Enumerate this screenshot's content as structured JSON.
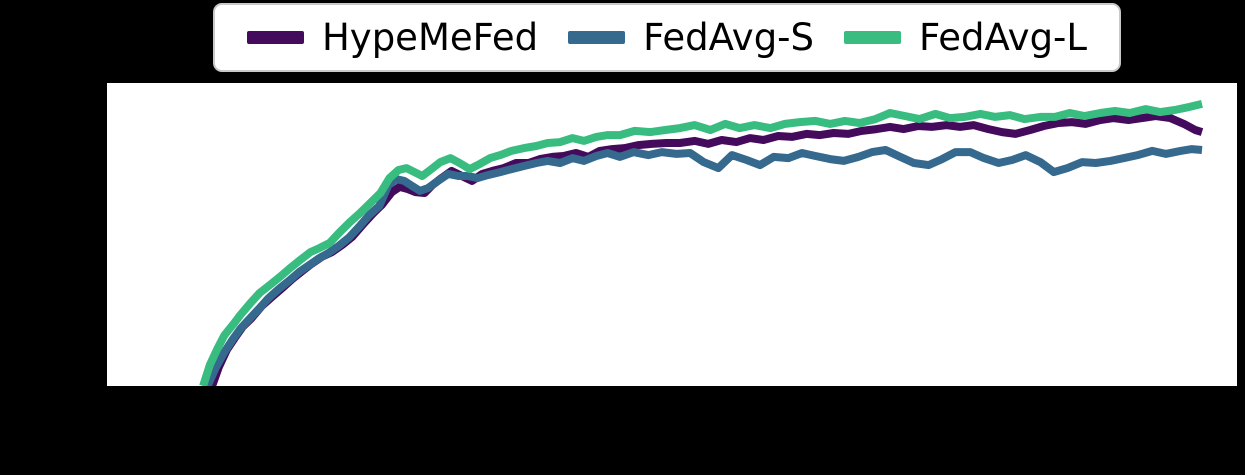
{
  "figure": {
    "background_color": "#000000",
    "plot_background_color": "#ffffff",
    "axis_tick_labels_visible": false,
    "title": ""
  },
  "legend": {
    "position": "top-center",
    "background_color": "#ffffff",
    "border_color": "#c9c9c9"
  },
  "chart_data": {
    "type": "line",
    "title": "",
    "xlabel": "",
    "ylabel": "",
    "grid": false,
    "legend_position": "top",
    "line_width": 8,
    "coords_note": "points are normalized to plot area: x 0-1 left to right, y 0-1 bottom to top (no axis tick labels are visible in the image)",
    "series": [
      {
        "name": "HypeMeFed",
        "color": "#440a5c",
        "points": [
          [
            0.093,
            0.0
          ],
          [
            0.099,
            0.063
          ],
          [
            0.106,
            0.119
          ],
          [
            0.113,
            0.158
          ],
          [
            0.12,
            0.195
          ],
          [
            0.128,
            0.224
          ],
          [
            0.137,
            0.264
          ],
          [
            0.146,
            0.294
          ],
          [
            0.155,
            0.323
          ],
          [
            0.164,
            0.353
          ],
          [
            0.173,
            0.38
          ],
          [
            0.181,
            0.403
          ],
          [
            0.19,
            0.426
          ],
          [
            0.199,
            0.442
          ],
          [
            0.208,
            0.465
          ],
          [
            0.217,
            0.492
          ],
          [
            0.226,
            0.531
          ],
          [
            0.235,
            0.568
          ],
          [
            0.243,
            0.597
          ],
          [
            0.252,
            0.64
          ],
          [
            0.259,
            0.657
          ],
          [
            0.266,
            0.65
          ],
          [
            0.273,
            0.64
          ],
          [
            0.281,
            0.637
          ],
          [
            0.288,
            0.663
          ],
          [
            0.296,
            0.686
          ],
          [
            0.305,
            0.71
          ],
          [
            0.314,
            0.693
          ],
          [
            0.323,
            0.677
          ],
          [
            0.332,
            0.7
          ],
          [
            0.341,
            0.71
          ],
          [
            0.351,
            0.719
          ],
          [
            0.362,
            0.736
          ],
          [
            0.373,
            0.736
          ],
          [
            0.383,
            0.749
          ],
          [
            0.394,
            0.756
          ],
          [
            0.404,
            0.759
          ],
          [
            0.415,
            0.769
          ],
          [
            0.426,
            0.756
          ],
          [
            0.436,
            0.776
          ],
          [
            0.447,
            0.782
          ],
          [
            0.458,
            0.785
          ],
          [
            0.47,
            0.795
          ],
          [
            0.482,
            0.799
          ],
          [
            0.495,
            0.802
          ],
          [
            0.507,
            0.802
          ],
          [
            0.52,
            0.809
          ],
          [
            0.532,
            0.799
          ],
          [
            0.544,
            0.812
          ],
          [
            0.557,
            0.805
          ],
          [
            0.569,
            0.818
          ],
          [
            0.581,
            0.812
          ],
          [
            0.594,
            0.825
          ],
          [
            0.606,
            0.822
          ],
          [
            0.619,
            0.832
          ],
          [
            0.631,
            0.828
          ],
          [
            0.643,
            0.835
          ],
          [
            0.656,
            0.832
          ],
          [
            0.668,
            0.842
          ],
          [
            0.681,
            0.848
          ],
          [
            0.693,
            0.855
          ],
          [
            0.705,
            0.848
          ],
          [
            0.718,
            0.858
          ],
          [
            0.73,
            0.855
          ],
          [
            0.743,
            0.861
          ],
          [
            0.755,
            0.855
          ],
          [
            0.767,
            0.861
          ],
          [
            0.78,
            0.848
          ],
          [
            0.792,
            0.838
          ],
          [
            0.804,
            0.832
          ],
          [
            0.817,
            0.845
          ],
          [
            0.829,
            0.858
          ],
          [
            0.842,
            0.868
          ],
          [
            0.854,
            0.871
          ],
          [
            0.866,
            0.865
          ],
          [
            0.879,
            0.878
          ],
          [
            0.891,
            0.884
          ],
          [
            0.904,
            0.878
          ],
          [
            0.916,
            0.884
          ],
          [
            0.928,
            0.891
          ],
          [
            0.941,
            0.884
          ],
          [
            0.953,
            0.865
          ],
          [
            0.963,
            0.845
          ],
          [
            0.969,
            0.838
          ]
        ]
      },
      {
        "name": "FedAvg-S",
        "color": "#35698e",
        "points": [
          [
            0.089,
            0.0
          ],
          [
            0.096,
            0.059
          ],
          [
            0.104,
            0.112
          ],
          [
            0.111,
            0.152
          ],
          [
            0.118,
            0.188
          ],
          [
            0.126,
            0.221
          ],
          [
            0.135,
            0.257
          ],
          [
            0.143,
            0.29
          ],
          [
            0.152,
            0.32
          ],
          [
            0.161,
            0.347
          ],
          [
            0.17,
            0.376
          ],
          [
            0.179,
            0.399
          ],
          [
            0.188,
            0.422
          ],
          [
            0.196,
            0.439
          ],
          [
            0.205,
            0.462
          ],
          [
            0.214,
            0.489
          ],
          [
            0.223,
            0.525
          ],
          [
            0.232,
            0.564
          ],
          [
            0.241,
            0.594
          ],
          [
            0.249,
            0.663
          ],
          [
            0.256,
            0.683
          ],
          [
            0.263,
            0.677
          ],
          [
            0.27,
            0.66
          ],
          [
            0.277,
            0.644
          ],
          [
            0.284,
            0.653
          ],
          [
            0.293,
            0.677
          ],
          [
            0.302,
            0.7
          ],
          [
            0.311,
            0.693
          ],
          [
            0.319,
            0.693
          ],
          [
            0.328,
            0.686
          ],
          [
            0.337,
            0.696
          ],
          [
            0.348,
            0.706
          ],
          [
            0.358,
            0.716
          ],
          [
            0.369,
            0.726
          ],
          [
            0.38,
            0.736
          ],
          [
            0.39,
            0.743
          ],
          [
            0.401,
            0.736
          ],
          [
            0.412,
            0.752
          ],
          [
            0.422,
            0.743
          ],
          [
            0.433,
            0.759
          ],
          [
            0.443,
            0.769
          ],
          [
            0.454,
            0.756
          ],
          [
            0.466,
            0.772
          ],
          [
            0.479,
            0.762
          ],
          [
            0.491,
            0.772
          ],
          [
            0.504,
            0.766
          ],
          [
            0.516,
            0.769
          ],
          [
            0.528,
            0.739
          ],
          [
            0.541,
            0.719
          ],
          [
            0.553,
            0.762
          ],
          [
            0.566,
            0.746
          ],
          [
            0.578,
            0.729
          ],
          [
            0.59,
            0.756
          ],
          [
            0.603,
            0.752
          ],
          [
            0.615,
            0.769
          ],
          [
            0.627,
            0.759
          ],
          [
            0.64,
            0.749
          ],
          [
            0.652,
            0.743
          ],
          [
            0.665,
            0.756
          ],
          [
            0.677,
            0.772
          ],
          [
            0.689,
            0.779
          ],
          [
            0.702,
            0.756
          ],
          [
            0.714,
            0.736
          ],
          [
            0.727,
            0.729
          ],
          [
            0.739,
            0.749
          ],
          [
            0.751,
            0.772
          ],
          [
            0.764,
            0.772
          ],
          [
            0.776,
            0.752
          ],
          [
            0.789,
            0.736
          ],
          [
            0.801,
            0.746
          ],
          [
            0.813,
            0.762
          ],
          [
            0.826,
            0.739
          ],
          [
            0.838,
            0.706
          ],
          [
            0.85,
            0.719
          ],
          [
            0.863,
            0.739
          ],
          [
            0.875,
            0.736
          ],
          [
            0.888,
            0.743
          ],
          [
            0.9,
            0.752
          ],
          [
            0.912,
            0.762
          ],
          [
            0.925,
            0.776
          ],
          [
            0.937,
            0.766
          ],
          [
            0.95,
            0.776
          ],
          [
            0.96,
            0.782
          ],
          [
            0.969,
            0.779
          ]
        ]
      },
      {
        "name": "FedAvg-L",
        "color": "#38bc80",
        "points": [
          [
            0.085,
            0.0
          ],
          [
            0.091,
            0.069
          ],
          [
            0.098,
            0.125
          ],
          [
            0.104,
            0.168
          ],
          [
            0.112,
            0.205
          ],
          [
            0.118,
            0.234
          ],
          [
            0.127,
            0.274
          ],
          [
            0.135,
            0.307
          ],
          [
            0.144,
            0.333
          ],
          [
            0.153,
            0.36
          ],
          [
            0.162,
            0.389
          ],
          [
            0.171,
            0.416
          ],
          [
            0.18,
            0.442
          ],
          [
            0.188,
            0.455
          ],
          [
            0.197,
            0.472
          ],
          [
            0.206,
            0.508
          ],
          [
            0.215,
            0.541
          ],
          [
            0.224,
            0.571
          ],
          [
            0.233,
            0.604
          ],
          [
            0.242,
            0.637
          ],
          [
            0.25,
            0.686
          ],
          [
            0.258,
            0.713
          ],
          [
            0.265,
            0.719
          ],
          [
            0.272,
            0.706
          ],
          [
            0.279,
            0.693
          ],
          [
            0.286,
            0.713
          ],
          [
            0.295,
            0.739
          ],
          [
            0.304,
            0.752
          ],
          [
            0.312,
            0.736
          ],
          [
            0.321,
            0.716
          ],
          [
            0.33,
            0.733
          ],
          [
            0.339,
            0.752
          ],
          [
            0.348,
            0.762
          ],
          [
            0.358,
            0.776
          ],
          [
            0.369,
            0.785
          ],
          [
            0.38,
            0.792
          ],
          [
            0.39,
            0.802
          ],
          [
            0.401,
            0.805
          ],
          [
            0.412,
            0.818
          ],
          [
            0.422,
            0.809
          ],
          [
            0.433,
            0.822
          ],
          [
            0.443,
            0.828
          ],
          [
            0.454,
            0.828
          ],
          [
            0.467,
            0.842
          ],
          [
            0.481,
            0.838
          ],
          [
            0.494,
            0.845
          ],
          [
            0.507,
            0.851
          ],
          [
            0.52,
            0.861
          ],
          [
            0.534,
            0.845
          ],
          [
            0.547,
            0.865
          ],
          [
            0.56,
            0.851
          ],
          [
            0.573,
            0.861
          ],
          [
            0.587,
            0.851
          ],
          [
            0.6,
            0.865
          ],
          [
            0.613,
            0.871
          ],
          [
            0.627,
            0.875
          ],
          [
            0.64,
            0.865
          ],
          [
            0.653,
            0.875
          ],
          [
            0.666,
            0.868
          ],
          [
            0.68,
            0.881
          ],
          [
            0.693,
            0.901
          ],
          [
            0.706,
            0.891
          ],
          [
            0.719,
            0.881
          ],
          [
            0.733,
            0.898
          ],
          [
            0.746,
            0.884
          ],
          [
            0.759,
            0.888
          ],
          [
            0.773,
            0.898
          ],
          [
            0.786,
            0.888
          ],
          [
            0.799,
            0.894
          ],
          [
            0.812,
            0.881
          ],
          [
            0.826,
            0.888
          ],
          [
            0.839,
            0.888
          ],
          [
            0.852,
            0.901
          ],
          [
            0.865,
            0.891
          ],
          [
            0.879,
            0.901
          ],
          [
            0.892,
            0.908
          ],
          [
            0.905,
            0.901
          ],
          [
            0.919,
            0.914
          ],
          [
            0.932,
            0.904
          ],
          [
            0.945,
            0.911
          ],
          [
            0.958,
            0.921
          ],
          [
            0.969,
            0.931
          ]
        ]
      }
    ]
  }
}
